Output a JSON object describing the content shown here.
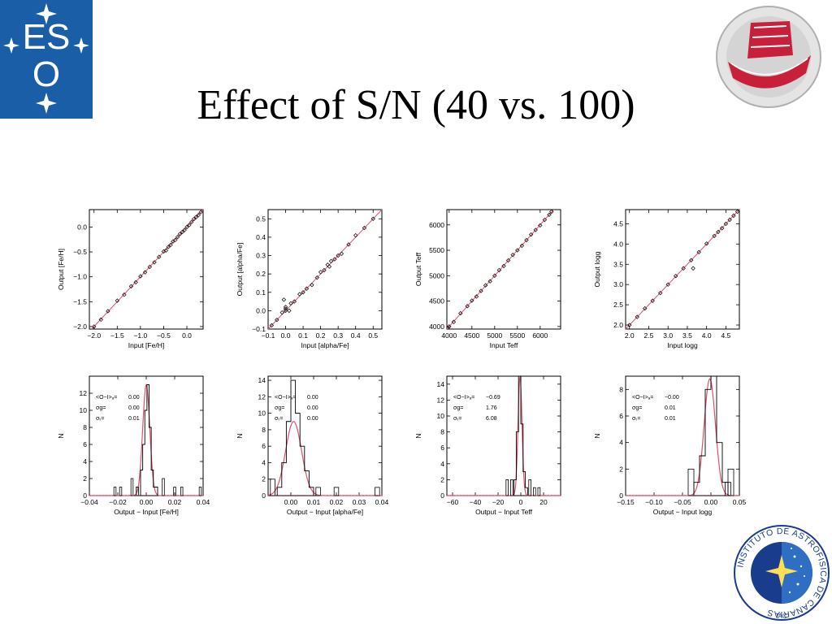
{
  "title": "Effect of S/N (40 vs. 100)",
  "logos": {
    "eso": {
      "text_top": "ES",
      "text_bottom": "O",
      "color": "#1a5ea8"
    },
    "telescope": {
      "color": "#c8203a"
    },
    "iac": {
      "ring_text": "INSTITUTO DE ASTROFISICA DE CANARIAS",
      "bottom_text": "IAC",
      "color": "#1a3c8c"
    }
  },
  "chart_data": [
    {
      "type": "scatter",
      "xlabel": "Input [Fe/H]",
      "ylabel": "Output [Fe/H]",
      "xlim": [
        -2.1,
        0.35
      ],
      "ylim": [
        -2.05,
        0.35
      ],
      "xticks": [
        -2.0,
        -1.5,
        -1.0,
        -0.5,
        0.0
      ],
      "xticklabels": [
        "−2.0",
        "−1.5",
        "−1.0",
        "−0.5",
        "0.0"
      ],
      "yticks": [
        -2.0,
        -1.5,
        -1.0,
        -0.5,
        0.0
      ],
      "yticklabels": [
        "−2.0",
        "−1.5",
        "−1.0",
        "−0.5",
        "0.0"
      ],
      "one_to_one_line": true,
      "points": [
        [
          -2.0,
          -2.0
        ],
        [
          -1.85,
          -1.86
        ],
        [
          -1.7,
          -1.69
        ],
        [
          -1.5,
          -1.48
        ],
        [
          -1.35,
          -1.36
        ],
        [
          -1.2,
          -1.19
        ],
        [
          -1.1,
          -1.11
        ],
        [
          -1.0,
          -0.99
        ],
        [
          -0.9,
          -0.91
        ],
        [
          -0.8,
          -0.8
        ],
        [
          -0.7,
          -0.71
        ],
        [
          -0.6,
          -0.6
        ],
        [
          -0.5,
          -0.49
        ],
        [
          -0.45,
          -0.47
        ],
        [
          -0.4,
          -0.4
        ],
        [
          -0.35,
          -0.36
        ],
        [
          -0.3,
          -0.29
        ],
        [
          -0.25,
          -0.26
        ],
        [
          -0.2,
          -0.2
        ],
        [
          -0.15,
          -0.14
        ],
        [
          -0.1,
          -0.1
        ],
        [
          -0.05,
          -0.06
        ],
        [
          0.0,
          0.0
        ],
        [
          0.05,
          0.04
        ],
        [
          0.1,
          0.1
        ],
        [
          0.15,
          0.16
        ],
        [
          0.2,
          0.2
        ],
        [
          0.25,
          0.24
        ],
        [
          0.3,
          0.3
        ]
      ]
    },
    {
      "type": "scatter",
      "xlabel": "Input [alpha/Fe]",
      "ylabel": "Output [alpha/Fe]",
      "xlim": [
        -0.1,
        0.55
      ],
      "ylim": [
        -0.1,
        0.55
      ],
      "xticks": [
        -0.1,
        0.0,
        0.1,
        0.2,
        0.3,
        0.4,
        0.5
      ],
      "xticklabels": [
        "−0.1",
        "0.0",
        "0.1",
        "0.2",
        "0.3",
        "0.4",
        "0.5"
      ],
      "yticks": [
        -0.1,
        0.0,
        0.1,
        0.2,
        0.3,
        0.4,
        0.5
      ],
      "yticklabels": [
        "−0.1",
        "0.0",
        "0.1",
        "0.2",
        "0.3",
        "0.4",
        "0.5"
      ],
      "one_to_one_line": true,
      "points": [
        [
          -0.08,
          -0.08
        ],
        [
          -0.05,
          -0.05
        ],
        [
          -0.02,
          -0.01
        ],
        [
          0.0,
          0.02
        ],
        [
          0.0,
          0.01
        ],
        [
          0.02,
          0.0
        ],
        [
          0.03,
          0.04
        ],
        [
          0.05,
          0.05
        ],
        [
          0.08,
          0.09
        ],
        [
          0.1,
          0.1
        ],
        [
          0.12,
          0.12
        ],
        [
          0.15,
          0.14
        ],
        [
          0.18,
          0.18
        ],
        [
          0.2,
          0.21
        ],
        [
          0.22,
          0.22
        ],
        [
          0.24,
          0.25
        ],
        [
          0.25,
          0.24
        ],
        [
          0.26,
          0.27
        ],
        [
          0.28,
          0.28
        ],
        [
          0.3,
          0.3
        ],
        [
          0.32,
          0.31
        ],
        [
          0.36,
          0.36
        ],
        [
          0.4,
          0.41
        ],
        [
          0.45,
          0.45
        ],
        [
          0.5,
          0.5
        ],
        [
          0.0,
          0.0
        ],
        [
          -0.01,
          0.06
        ]
      ]
    },
    {
      "type": "scatter",
      "xlabel": "Input Teff",
      "ylabel": "Output Teff",
      "xlim": [
        3950,
        6450
      ],
      "ylim": [
        3950,
        6300
      ],
      "xticks": [
        4000,
        4500,
        5000,
        5500,
        6000
      ],
      "xticklabels": [
        "4000",
        "4500",
        "5000",
        "5500",
        "6000"
      ],
      "yticks": [
        4000,
        4500,
        5000,
        5500,
        6000
      ],
      "yticklabels": [
        "4000",
        "4500",
        "5000",
        "5500",
        "6000"
      ],
      "one_to_one_line": true,
      "points": [
        [
          4000,
          4000
        ],
        [
          4100,
          4090
        ],
        [
          4250,
          4260
        ],
        [
          4400,
          4400
        ],
        [
          4500,
          4510
        ],
        [
          4600,
          4590
        ],
        [
          4700,
          4700
        ],
        [
          4800,
          4810
        ],
        [
          4900,
          4890
        ],
        [
          5000,
          5000
        ],
        [
          5100,
          5110
        ],
        [
          5200,
          5190
        ],
        [
          5300,
          5300
        ],
        [
          5400,
          5410
        ],
        [
          5500,
          5500
        ],
        [
          5600,
          5590
        ],
        [
          5700,
          5700
        ],
        [
          5800,
          5810
        ],
        [
          5900,
          5900
        ],
        [
          6000,
          5990
        ],
        [
          6100,
          6100
        ],
        [
          6200,
          6200
        ],
        [
          6250,
          6260
        ]
      ]
    },
    {
      "type": "scatter",
      "xlabel": "Input logg",
      "ylabel": "Output logg",
      "xlim": [
        1.9,
        4.85
      ],
      "ylim": [
        1.9,
        4.85
      ],
      "xticks": [
        2.0,
        2.5,
        3.0,
        3.5,
        4.0,
        4.5
      ],
      "xticklabels": [
        "2.0",
        "2.5",
        "3.0",
        "3.5",
        "4.0",
        "4.5"
      ],
      "yticks": [
        2.0,
        2.5,
        3.0,
        3.5,
        4.0,
        4.5
      ],
      "yticklabels": [
        "2.0",
        "2.5",
        "3.0",
        "3.5",
        "4.0",
        "4.5"
      ],
      "one_to_one_line": true,
      "points": [
        [
          2.0,
          2.0
        ],
        [
          2.2,
          2.2
        ],
        [
          2.4,
          2.41
        ],
        [
          2.6,
          2.6
        ],
        [
          2.8,
          2.79
        ],
        [
          3.0,
          3.0
        ],
        [
          3.2,
          3.21
        ],
        [
          3.4,
          3.4
        ],
        [
          3.6,
          3.6
        ],
        [
          3.65,
          3.4
        ],
        [
          3.8,
          3.8
        ],
        [
          4.0,
          4.01
        ],
        [
          4.2,
          4.2
        ],
        [
          4.3,
          4.3
        ],
        [
          4.4,
          4.39
        ],
        [
          4.5,
          4.5
        ],
        [
          4.6,
          4.6
        ],
        [
          4.7,
          4.7
        ],
        [
          4.8,
          4.8
        ]
      ]
    },
    {
      "type": "histogram",
      "xlabel": "Output − Input [Fe/H]",
      "ylabel": "N",
      "xlim": [
        -0.04,
        0.04
      ],
      "ylim": [
        0,
        14
      ],
      "xticks": [
        -0.04,
        -0.02,
        0.0,
        0.02,
        0.04
      ],
      "xticklabels": [
        "−0.04",
        "−0.02",
        "0.00",
        "0.02",
        "0.04"
      ],
      "yticks": [
        0,
        2,
        4,
        6,
        8,
        10,
        12
      ],
      "yticklabels": [
        "0",
        "2",
        "4",
        "6",
        "8",
        "10",
        "12"
      ],
      "bins": [
        -0.0085,
        -0.007,
        -0.0055,
        -0.004,
        -0.0025,
        -0.001,
        0.0005,
        0.002,
        0.0035,
        0.005,
        0.0065,
        0.008
      ],
      "counts": [
        0,
        1,
        0,
        3,
        6,
        10,
        13,
        8,
        3,
        1,
        1
      ],
      "outliers": [
        [
          -0.022,
          1
        ],
        [
          -0.018,
          1
        ],
        [
          -0.01,
          2
        ],
        [
          0.012,
          2
        ],
        [
          0.02,
          1
        ],
        [
          0.025,
          1
        ],
        [
          0.038,
          1
        ]
      ],
      "gaussian": {
        "mean": 0.0,
        "sigma": 0.0025,
        "peak": 13
      },
      "stats": [
        {
          "label": "<O−I>ₐ=",
          "value": "0.00"
        },
        {
          "label": "σg=",
          "value": "0.00"
        },
        {
          "label": "σₜ=",
          "value": "0.01"
        }
      ]
    },
    {
      "type": "histogram",
      "xlabel": "Output − Input [alpha/Fe]",
      "ylabel": "N",
      "xlim": [
        -0.01,
        0.04
      ],
      "ylim": [
        0,
        14.5
      ],
      "xticks": [
        0.0,
        0.01,
        0.02,
        0.03,
        0.04
      ],
      "xticklabels": [
        "0.00",
        "0.01",
        "0.02",
        "0.03",
        "0.04"
      ],
      "yticks": [
        0,
        2,
        4,
        6,
        8,
        10,
        12,
        14
      ],
      "yticklabels": [
        "0",
        "2",
        "4",
        "6",
        "8",
        "10",
        "12",
        "14"
      ],
      "bins": [
        -0.006,
        -0.004,
        -0.002,
        0.0,
        0.002,
        0.004,
        0.006,
        0.008,
        0.01
      ],
      "counts": [
        1,
        4,
        9,
        14,
        10,
        6,
        3,
        1
      ],
      "outliers": [
        [
          -0.008,
          2
        ],
        [
          0.012,
          1
        ],
        [
          0.02,
          1
        ],
        [
          0.038,
          1
        ]
      ],
      "gaussian": {
        "mean": 0.0012,
        "sigma": 0.0035,
        "peak": 9
      },
      "stats": [
        {
          "label": "<O−I>ₐ=",
          "value": "0.00"
        },
        {
          "label": "σg=",
          "value": "0.00"
        },
        {
          "label": "σₜ=",
          "value": "0.00"
        }
      ]
    },
    {
      "type": "histogram",
      "xlabel": "Output − Input Teff",
      "ylabel": "N",
      "xlim": [
        -65,
        35
      ],
      "ylim": [
        0,
        15
      ],
      "xticks": [
        -60,
        -40,
        -20,
        0,
        20
      ],
      "xticklabels": [
        "−60",
        "−40",
        "−20",
        "0",
        "20"
      ],
      "yticks": [
        0,
        2,
        4,
        6,
        8,
        10,
        12,
        14
      ],
      "yticklabels": [
        "0",
        "2",
        "4",
        "6",
        "8",
        "10",
        "12",
        "14"
      ],
      "bins": [
        -6,
        -4,
        -2,
        0,
        2,
        4,
        6
      ],
      "counts": [
        2,
        8,
        15,
        9,
        3,
        1
      ],
      "outliers": [
        [
          -12,
          2
        ],
        [
          -8,
          2
        ],
        [
          8,
          2
        ],
        [
          12,
          1
        ],
        [
          16,
          1
        ]
      ],
      "gaussian": {
        "mean": -0.69,
        "sigma": 1.76,
        "peak": 15
      },
      "stats": [
        {
          "label": "<O−I>ₐ=",
          "value": "−0.69"
        },
        {
          "label": "σg=",
          "value": "1.76"
        },
        {
          "label": "σₜ=",
          "value": "6.08"
        }
      ]
    },
    {
      "type": "histogram",
      "xlabel": "Output − Input logg",
      "ylabel": "N",
      "xlim": [
        -0.15,
        0.05
      ],
      "ylim": [
        0,
        9
      ],
      "xticks": [
        -0.15,
        -0.1,
        -0.05,
        0.0,
        0.05
      ],
      "xticklabels": [
        "−0.15",
        "−0.10",
        "−0.05",
        "0.00",
        "0.05"
      ],
      "yticks": [
        0,
        2,
        4,
        6,
        8
      ],
      "yticklabels": [
        "0",
        "2",
        "4",
        "6",
        "8"
      ],
      "bins": [
        -0.03,
        -0.02,
        -0.01,
        0.0,
        0.01,
        0.02,
        0.03
      ],
      "counts": [
        1,
        3,
        8,
        9,
        4,
        1
      ],
      "outliers": [
        [
          -0.035,
          2
        ],
        [
          0.03,
          1
        ],
        [
          0.035,
          2
        ]
      ],
      "gaussian": {
        "mean": -0.002,
        "sigma": 0.01,
        "peak": 8.8
      },
      "stats": [
        {
          "label": "<O−I>ₐ=",
          "value": "−0.00"
        },
        {
          "label": "σg=",
          "value": "0.01"
        },
        {
          "label": "σₜ=",
          "value": "0.01"
        }
      ]
    }
  ]
}
